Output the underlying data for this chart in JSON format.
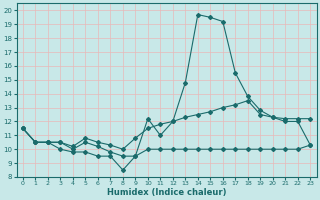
{
  "xlabel": "Humidex (Indice chaleur)",
  "xlim": [
    -0.5,
    23.5
  ],
  "ylim": [
    8,
    20.5
  ],
  "yticks": [
    8,
    9,
    10,
    11,
    12,
    13,
    14,
    15,
    16,
    17,
    18,
    19,
    20
  ],
  "xticks": [
    0,
    1,
    2,
    3,
    4,
    5,
    6,
    7,
    8,
    9,
    10,
    11,
    12,
    13,
    14,
    15,
    16,
    17,
    18,
    19,
    20,
    21,
    22,
    23
  ],
  "bg_color": "#c8e8e8",
  "line_color": "#1a6b6b",
  "grid_color": "#e8b8b8",
  "line1_x": [
    0,
    1,
    2,
    3,
    4,
    5,
    6,
    7,
    8,
    9,
    10,
    11,
    12,
    13,
    14,
    15,
    16,
    17,
    18,
    19,
    20,
    21,
    22,
    23
  ],
  "line1_y": [
    11.5,
    10.5,
    10.5,
    10.5,
    10.0,
    10.5,
    10.2,
    9.8,
    9.5,
    9.5,
    12.2,
    11.0,
    12.0,
    14.8,
    19.7,
    19.5,
    19.2,
    15.5,
    13.8,
    12.8,
    12.3,
    12.2,
    12.2,
    12.2
  ],
  "line2_x": [
    0,
    1,
    2,
    3,
    4,
    5,
    6,
    7,
    8,
    9,
    10,
    11,
    12,
    13,
    14,
    15,
    16,
    17,
    18,
    19,
    20,
    21,
    22,
    23
  ],
  "line2_y": [
    11.5,
    10.5,
    10.5,
    10.5,
    10.2,
    10.8,
    10.5,
    10.3,
    10.0,
    10.8,
    11.5,
    11.8,
    12.0,
    12.3,
    12.5,
    12.7,
    13.0,
    13.2,
    13.5,
    12.5,
    12.3,
    12.0,
    12.0,
    10.3
  ],
  "line3_x": [
    0,
    1,
    2,
    3,
    4,
    5,
    6,
    7,
    8,
    9,
    10,
    11,
    12,
    13,
    14,
    15,
    16,
    17,
    18,
    19,
    20,
    21,
    22,
    23
  ],
  "line3_y": [
    11.5,
    10.5,
    10.5,
    10.0,
    9.8,
    9.8,
    9.5,
    9.5,
    8.5,
    9.5,
    10.0,
    10.0,
    10.0,
    10.0,
    10.0,
    10.0,
    10.0,
    10.0,
    10.0,
    10.0,
    10.0,
    10.0,
    10.0,
    10.3
  ],
  "marker": "D",
  "markersize": 2.0,
  "linewidth": 0.8
}
